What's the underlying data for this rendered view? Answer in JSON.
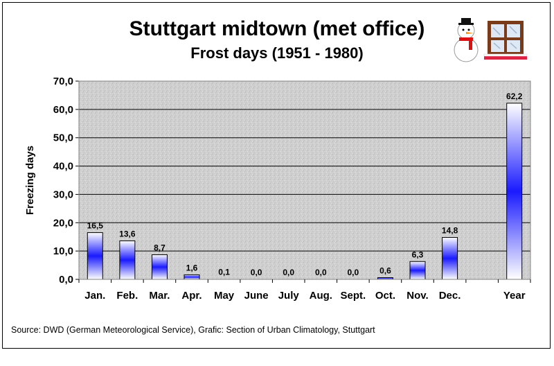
{
  "chart_data": {
    "type": "bar",
    "title": "Stuttgart midtown (met office)",
    "subtitle": "Frost days (1951 - 1980)",
    "ylabel": "Freezing days",
    "xlabel": "",
    "ylim": [
      0,
      70
    ],
    "yticks": [
      "0,0",
      "10,0",
      "20,0",
      "30,0",
      "40,0",
      "50,0",
      "60,0",
      "70,0"
    ],
    "categories": [
      "Jan.",
      "Feb.",
      "Mar.",
      "Apr.",
      "May",
      "June",
      "July",
      "Aug.",
      "Sept.",
      "Oct.",
      "Nov.",
      "Dec.",
      "",
      "Year"
    ],
    "values": [
      16.5,
      13.6,
      8.7,
      1.6,
      0.1,
      0.0,
      0.0,
      0.0,
      0.0,
      0.6,
      6.3,
      14.8,
      null,
      62.2
    ],
    "data_labels": [
      "16,5",
      "13,6",
      "8,7",
      "1,6",
      "0,1",
      "0,0",
      "0,0",
      "0,0",
      "0,0",
      "0,6",
      "6,3",
      "14,8",
      "",
      "62,2"
    ],
    "grid": true,
    "legend": "none",
    "bar_gradient": [
      "#ffffff",
      "#1a1aff"
    ]
  },
  "source": "Source: DWD (German Meteorological Service), Grafic: Section of Urban Climatology, Stuttgart",
  "decorations": {
    "snowman": "snowman-icon",
    "window": "frosted-window-icon"
  }
}
